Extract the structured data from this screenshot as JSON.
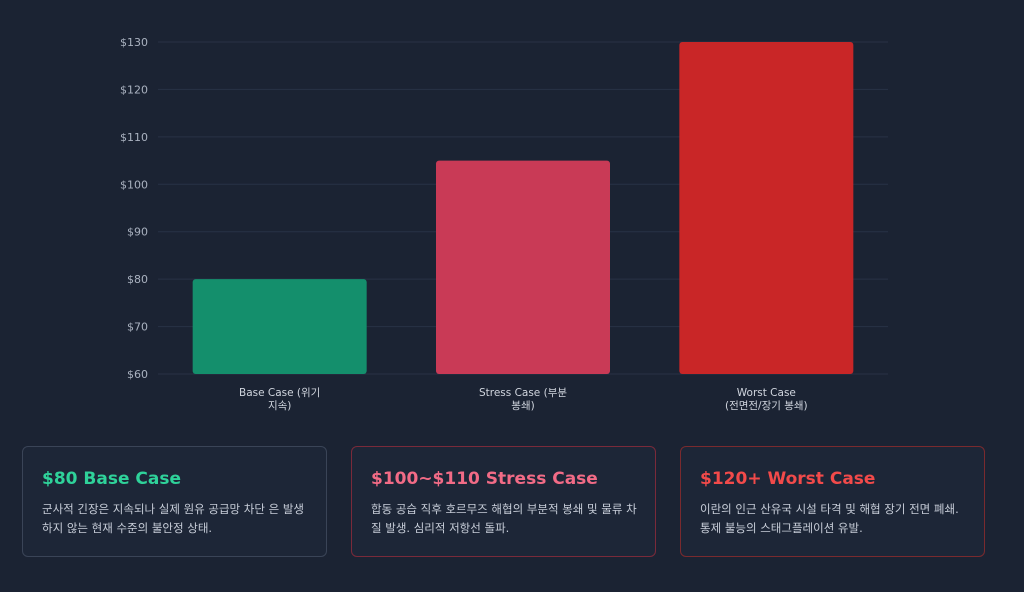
{
  "chart_data": {
    "type": "bar",
    "categories": [
      [
        "Base Case (위기",
        "지속)"
      ],
      [
        "Stress Case (부분",
        "봉쇄)"
      ],
      [
        "Worst Case",
        "(전면전/장기 봉쇄)"
      ]
    ],
    "values": [
      80,
      105,
      130
    ],
    "colors": [
      "#148f6c",
      "#c93a56",
      "#c92627"
    ],
    "ylim": [
      60,
      130
    ],
    "yticks": [
      60,
      70,
      80,
      90,
      100,
      110,
      120,
      130
    ],
    "ytick_labels": [
      "$60",
      "$70",
      "$80",
      "$90",
      "$100",
      "$110",
      "$120",
      "$130"
    ],
    "grid": true,
    "title": "",
    "xlabel": "",
    "ylabel": ""
  },
  "cards": [
    {
      "title": "$80 Base Case",
      "title_color": "#2fd29a",
      "desc": "군사적 긴장은 지속되나 실제 원유 공급망 차단 은 발생하지 않는 현재 수준의 불안정 상태."
    },
    {
      "title": "$100~$110 Stress Case",
      "title_color": "#f26b86",
      "desc": "합동 공습 직후 호르무즈 해협의 부분적 봉쇄 및 물류 차질 발생. 심리적 저항선 돌파."
    },
    {
      "title": "$120+ Worst Case",
      "title_color": "#f24a4a",
      "desc": "이란의 인근 산유국 시설 타격 및 해협 장기 전면 폐쇄. 통제 불능의 스태그플레이션 유발."
    }
  ]
}
